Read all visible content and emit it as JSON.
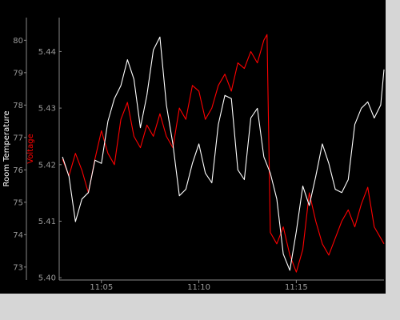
{
  "chart_data": {
    "type": "line",
    "title": "",
    "colors": {
      "background": "#000000",
      "left_axis": "#ffffff",
      "right_axis": "#ff0000",
      "ticks": "#9a9a9a"
    },
    "x_axis": {
      "label": "",
      "range": [
        "11:02:50",
        "11:19:30"
      ],
      "ticks": [
        "11:05",
        "11:10",
        "11:15"
      ]
    },
    "left_axis": {
      "label": "Room Temperature",
      "range": [
        72.6,
        80.7
      ],
      "ticks": [
        "73",
        "74",
        "75",
        "76",
        "77",
        "78",
        "79",
        "80"
      ]
    },
    "right_axis": {
      "label": "Voltage",
      "range": [
        5.3996,
        5.446
      ],
      "ticks": [
        "5.40",
        "5.41",
        "5.42",
        "5.43",
        "5.44"
      ]
    },
    "series": [
      {
        "axis": "left",
        "color": "#ffffff",
        "x": [
          "11:03:00",
          "11:03:20",
          "11:03:40",
          "11:04:00",
          "11:04:20",
          "11:04:40",
          "11:05:00",
          "11:05:20",
          "11:05:40",
          "11:06:00",
          "11:06:20",
          "11:06:40",
          "11:07:00",
          "11:07:20",
          "11:07:40",
          "11:08:00",
          "11:08:20",
          "11:08:40",
          "11:09:00",
          "11:09:20",
          "11:09:40",
          "11:10:00",
          "11:10:20",
          "11:10:40",
          "11:11:00",
          "11:11:20",
          "11:11:40",
          "11:12:00",
          "11:12:20",
          "11:12:40",
          "11:13:00",
          "11:13:20",
          "11:13:40",
          "11:14:00",
          "11:14:20",
          "11:14:40",
          "11:15:00",
          "11:15:20",
          "11:15:40",
          "11:16:00",
          "11:16:20",
          "11:16:40",
          "11:17:00",
          "11:17:20",
          "11:17:40",
          "11:18:00",
          "11:18:20",
          "11:18:40",
          "11:19:00",
          "11:19:20",
          "11:19:30"
        ],
        "y": [
          76.4,
          75.8,
          74.4,
          75.1,
          75.3,
          76.3,
          76.2,
          77.5,
          78.2,
          78.6,
          79.4,
          78.8,
          77.3,
          78.3,
          79.7,
          80.1,
          78.0,
          76.8,
          75.2,
          75.4,
          76.2,
          76.8,
          75.9,
          75.6,
          77.4,
          78.3,
          78.2,
          76.0,
          75.7,
          77.6,
          77.9,
          76.4,
          75.9,
          75.1,
          73.4,
          72.9,
          74.1,
          75.5,
          74.9,
          75.8,
          76.8,
          76.2,
          75.4,
          75.3,
          75.7,
          77.4,
          77.9,
          78.1,
          77.6,
          78.0,
          79.1
        ]
      },
      {
        "axis": "right",
        "color": "#ff0000",
        "x": [
          "11:03:00",
          "11:03:20",
          "11:03:40",
          "11:04:00",
          "11:04:20",
          "11:04:40",
          "11:05:00",
          "11:05:20",
          "11:05:40",
          "11:06:00",
          "11:06:20",
          "11:06:40",
          "11:07:00",
          "11:07:20",
          "11:07:40",
          "11:08:00",
          "11:08:20",
          "11:08:40",
          "11:09:00",
          "11:09:20",
          "11:09:40",
          "11:10:00",
          "11:10:20",
          "11:10:40",
          "11:11:00",
          "11:11:20",
          "11:11:40",
          "11:12:00",
          "11:12:20",
          "11:12:40",
          "11:13:00",
          "11:13:20",
          "11:13:30",
          "11:13:40",
          "11:14:00",
          "11:14:20",
          "11:14:40",
          "11:15:00",
          "11:15:20",
          "11:15:40",
          "11:16:00",
          "11:16:20",
          "11:16:40",
          "11:17:00",
          "11:17:20",
          "11:17:40",
          "11:18:00",
          "11:18:20",
          "11:18:40",
          "11:19:00",
          "11:19:20",
          "11:19:30"
        ],
        "y": [
          5.421,
          5.418,
          5.422,
          5.419,
          5.415,
          5.421,
          5.426,
          5.422,
          5.42,
          5.428,
          5.431,
          5.425,
          5.423,
          5.427,
          5.425,
          5.429,
          5.425,
          5.423,
          5.43,
          5.428,
          5.434,
          5.433,
          5.428,
          5.43,
          5.434,
          5.436,
          5.433,
          5.438,
          5.437,
          5.44,
          5.438,
          5.442,
          5.443,
          5.408,
          5.406,
          5.409,
          5.404,
          5.401,
          5.405,
          5.415,
          5.41,
          5.406,
          5.404,
          5.407,
          5.41,
          5.412,
          5.409,
          5.413,
          5.416,
          5.409,
          5.407,
          5.406
        ]
      }
    ]
  }
}
